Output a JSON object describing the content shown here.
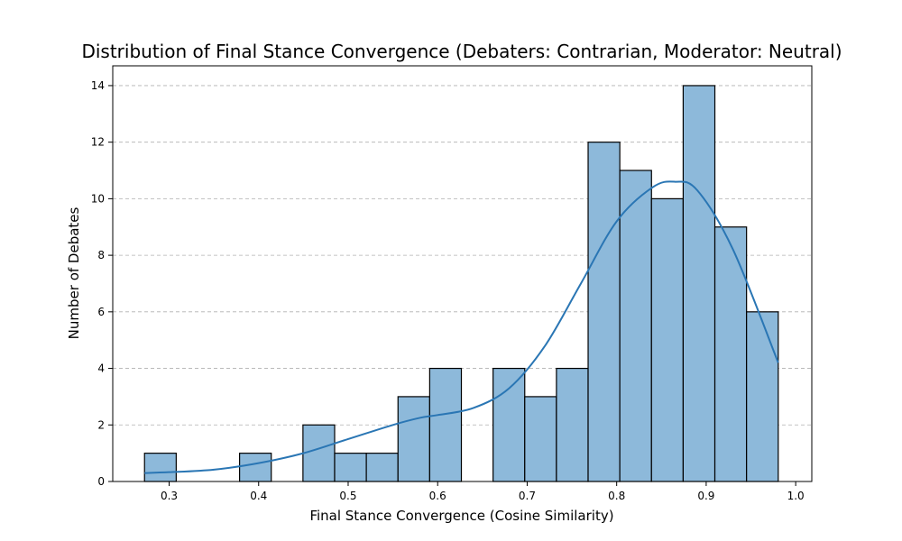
{
  "chart_data": {
    "type": "bar",
    "title": "Distribution of Final Stance Convergence (Debaters: Contrarian, Moderator: Neutral)",
    "xlabel": "Final Stance Convergence (Cosine Similarity)",
    "ylabel": "Number of Debates",
    "xlim": [
      0.237,
      1.018
    ],
    "ylim": [
      0,
      14.7
    ],
    "xticks": [
      0.3,
      0.4,
      0.5,
      0.6,
      0.7,
      0.8,
      0.9,
      1.0
    ],
    "xtick_labels": [
      "0.3",
      "0.4",
      "0.5",
      "0.6",
      "0.7",
      "0.8",
      "0.9",
      "1.0"
    ],
    "yticks": [
      0,
      2,
      4,
      6,
      8,
      10,
      12,
      14
    ],
    "ytick_labels": [
      "0",
      "2",
      "4",
      "6",
      "8",
      "10",
      "12",
      "14"
    ],
    "grid": "y-dashed",
    "bin_edges": [
      0.2725,
      0.3079,
      0.3433,
      0.3787,
      0.4141,
      0.4495,
      0.4849,
      0.5203,
      0.5557,
      0.5911,
      0.6265,
      0.6619,
      0.6973,
      0.7327,
      0.7681,
      0.8035,
      0.8389,
      0.8743,
      0.9097,
      0.9451,
      0.9805
    ],
    "counts": [
      1,
      0,
      0,
      1,
      0,
      2,
      1,
      1,
      3,
      4,
      0,
      4,
      3,
      4,
      12,
      11,
      10,
      14,
      9,
      6
    ],
    "kde": {
      "x": [
        0.2725,
        0.3,
        0.35,
        0.4,
        0.45,
        0.5,
        0.55,
        0.58,
        0.6,
        0.64,
        0.68,
        0.72,
        0.76,
        0.8,
        0.84,
        0.865,
        0.89,
        0.93,
        0.9805
      ],
      "y": [
        0.3,
        0.33,
        0.42,
        0.65,
        1.0,
        1.5,
        2.0,
        2.25,
        2.35,
        2.6,
        3.3,
        4.8,
        7.0,
        9.2,
        10.4,
        10.6,
        10.3,
        8.2,
        4.2
      ]
    },
    "colors": {
      "bar_fill": "#8db9da",
      "bar_edge": "#000000",
      "kde_line": "#2a76b4"
    }
  }
}
